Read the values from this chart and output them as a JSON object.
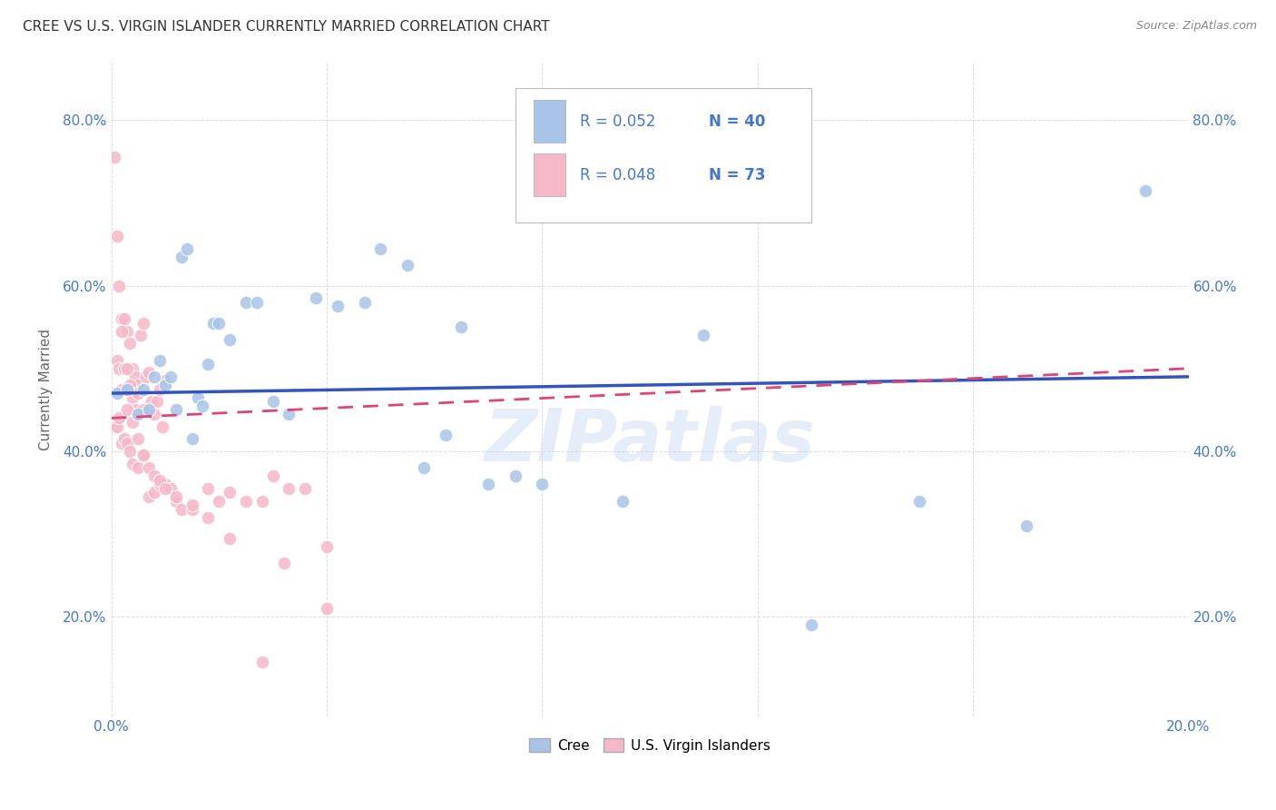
{
  "title": "CREE VS U.S. VIRGIN ISLANDER CURRENTLY MARRIED CORRELATION CHART",
  "source": "Source: ZipAtlas.com",
  "ylabel": "Currently Married",
  "watermark": "ZIPatlas",
  "xlim": [
    0.0,
    0.2
  ],
  "ylim": [
    0.08,
    0.87
  ],
  "xtick_vals": [
    0.0,
    0.04,
    0.08,
    0.12,
    0.16,
    0.2
  ],
  "xtick_labels": [
    "0.0%",
    "",
    "",
    "",
    "",
    "20.0%"
  ],
  "ytick_vals": [
    0.2,
    0.4,
    0.6,
    0.8
  ],
  "ytick_labels": [
    "20.0%",
    "40.0%",
    "60.0%",
    "80.0%"
  ],
  "cree_color": "#a8c4e8",
  "vi_color": "#f5b8c8",
  "trend_cree_color": "#3355bb",
  "trend_vi_color": "#dd4477",
  "background_color": "#ffffff",
  "grid_color": "#cccccc",
  "axis_label_color": "#4477cc",
  "ylabel_color": "#666666",
  "title_color": "#333333",
  "source_color": "#888888",
  "legend_r_cree": "R = 0.052",
  "legend_n_cree": "N = 40",
  "legend_r_vi": "R = 0.048",
  "legend_n_vi": "N = 73",
  "cree_x": [
    0.001,
    0.003,
    0.005,
    0.006,
    0.007,
    0.008,
    0.009,
    0.01,
    0.011,
    0.012,
    0.013,
    0.014,
    0.015,
    0.016,
    0.017,
    0.018,
    0.019,
    0.02,
    0.022,
    0.025,
    0.027,
    0.03,
    0.033,
    0.038,
    0.042,
    0.047,
    0.05,
    0.055,
    0.058,
    0.062,
    0.065,
    0.07,
    0.075,
    0.08,
    0.095,
    0.11,
    0.13,
    0.15,
    0.17,
    0.192
  ],
  "cree_y": [
    0.47,
    0.475,
    0.445,
    0.475,
    0.45,
    0.49,
    0.51,
    0.48,
    0.49,
    0.45,
    0.635,
    0.645,
    0.415,
    0.465,
    0.455,
    0.505,
    0.555,
    0.555,
    0.535,
    0.58,
    0.58,
    0.46,
    0.445,
    0.585,
    0.575,
    0.58,
    0.645,
    0.625,
    0.38,
    0.42,
    0.55,
    0.36,
    0.37,
    0.36,
    0.34,
    0.54,
    0.19,
    0.34,
    0.31,
    0.715
  ],
  "vi_x": [
    0.0005,
    0.001,
    0.0015,
    0.002,
    0.0025,
    0.003,
    0.0035,
    0.004,
    0.0045,
    0.005,
    0.0055,
    0.006,
    0.0065,
    0.007,
    0.0075,
    0.008,
    0.0085,
    0.009,
    0.0095,
    0.01,
    0.001,
    0.0015,
    0.002,
    0.0025,
    0.003,
    0.0035,
    0.004,
    0.0045,
    0.005,
    0.006,
    0.0005,
    0.001,
    0.0015,
    0.002,
    0.0025,
    0.003,
    0.0035,
    0.004,
    0.005,
    0.006,
    0.007,
    0.008,
    0.009,
    0.01,
    0.011,
    0.012,
    0.013,
    0.015,
    0.018,
    0.02,
    0.022,
    0.025,
    0.028,
    0.03,
    0.033,
    0.036,
    0.04,
    0.002,
    0.003,
    0.004,
    0.005,
    0.006,
    0.007,
    0.008,
    0.009,
    0.01,
    0.012,
    0.015,
    0.018,
    0.022,
    0.028,
    0.032,
    0.04
  ],
  "vi_y": [
    0.755,
    0.66,
    0.6,
    0.56,
    0.56,
    0.545,
    0.53,
    0.5,
    0.49,
    0.48,
    0.54,
    0.555,
    0.49,
    0.495,
    0.46,
    0.445,
    0.46,
    0.475,
    0.43,
    0.485,
    0.51,
    0.5,
    0.545,
    0.5,
    0.5,
    0.48,
    0.465,
    0.45,
    0.47,
    0.45,
    0.43,
    0.43,
    0.44,
    0.41,
    0.415,
    0.41,
    0.4,
    0.385,
    0.38,
    0.395,
    0.345,
    0.35,
    0.36,
    0.36,
    0.355,
    0.34,
    0.33,
    0.33,
    0.355,
    0.34,
    0.35,
    0.34,
    0.34,
    0.37,
    0.355,
    0.355,
    0.21,
    0.475,
    0.45,
    0.435,
    0.415,
    0.395,
    0.38,
    0.37,
    0.365,
    0.355,
    0.345,
    0.335,
    0.32,
    0.295,
    0.145,
    0.265,
    0.285
  ]
}
